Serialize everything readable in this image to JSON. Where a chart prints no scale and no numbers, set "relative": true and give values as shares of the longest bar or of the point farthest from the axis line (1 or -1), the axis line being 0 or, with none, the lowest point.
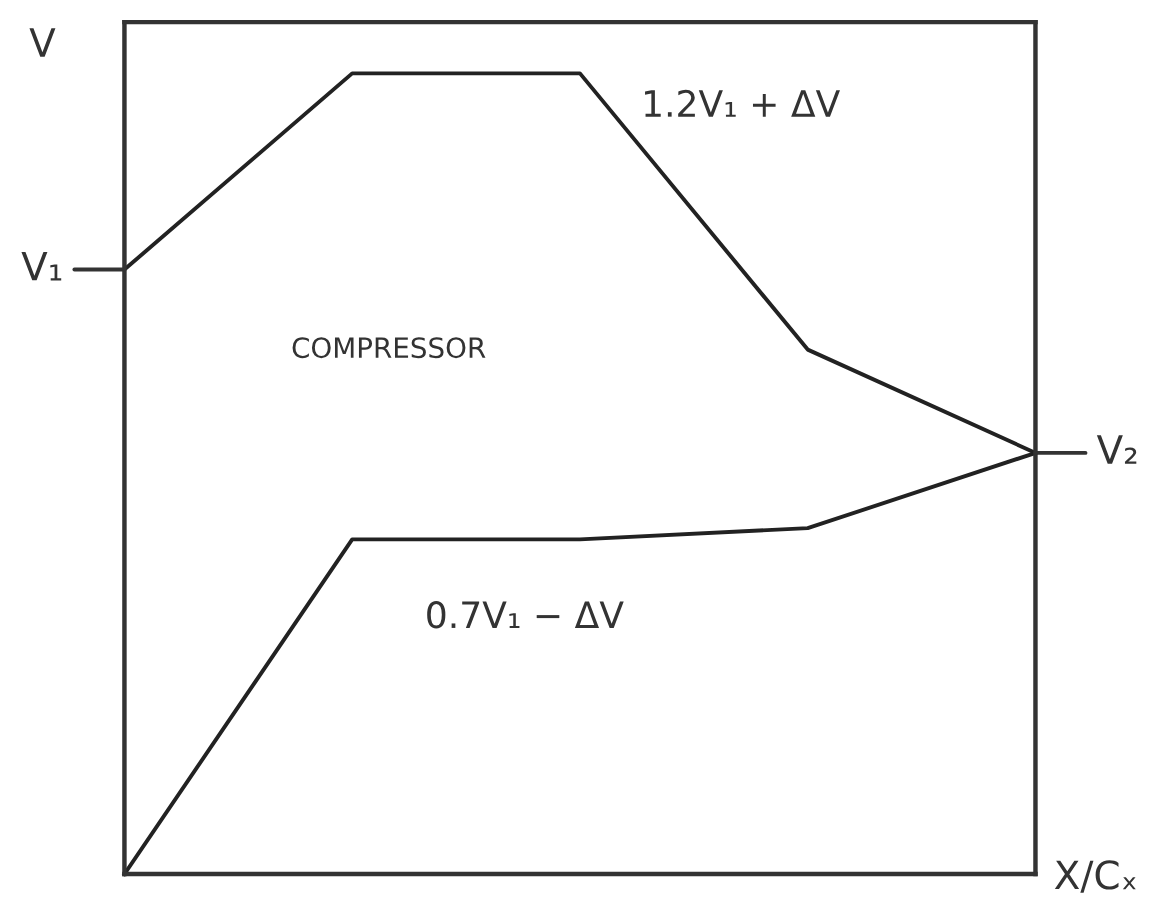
{
  "chart_data": {
    "type": "line",
    "relative": true,
    "xlabel": "X/Cₓ",
    "ylabel": "V",
    "legend": false,
    "marker": "none",
    "line_style": "solid",
    "categories": [
      null,
      null,
      null,
      null,
      null
    ],
    "series": [
      {
        "name": "1.2V₁ + ΔV",
        "color": "#222222",
        "values": [
          0.755,
          1,
          1,
          0.655,
          0.526
        ]
      },
      {
        "name": "0.7V₁ − ΔV",
        "color": "#222222",
        "values": [
          0,
          0.418,
          0.418,
          0.432,
          0.526
        ]
      }
    ],
    "annotations": [
      "COMPRESSOR",
      "V₁",
      "V₂"
    ]
  }
}
